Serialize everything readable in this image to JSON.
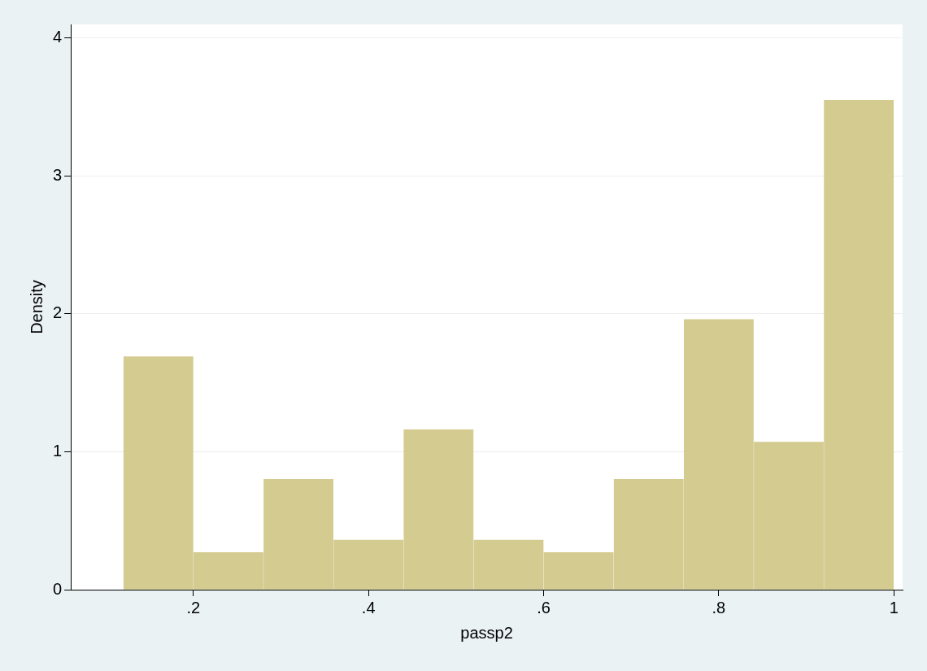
{
  "chart_data": {
    "type": "histogram",
    "xlabel": "passp2",
    "ylabel": "Density",
    "bins": [
      0.12,
      0.2,
      0.28,
      0.36,
      0.44,
      0.52,
      0.6,
      0.68,
      0.76,
      0.84,
      0.92,
      1.0
    ],
    "values": [
      1.69,
      0.27,
      0.8,
      0.36,
      1.16,
      0.36,
      0.27,
      0.8,
      1.96,
      1.07,
      3.55
    ],
    "color": "#d4cb90",
    "xlim": [
      0.06,
      1.01
    ],
    "xticks": [
      {
        "value": 0.2,
        "label": ".2"
      },
      {
        "value": 0.4,
        "label": ".4"
      },
      {
        "value": 0.6,
        "label": ".6"
      },
      {
        "value": 0.8,
        "label": ".8"
      },
      1
    ],
    "ylim": [
      0,
      4.1
    ],
    "yticks": [
      0,
      1,
      2,
      3,
      4
    ],
    "grid": "y"
  }
}
